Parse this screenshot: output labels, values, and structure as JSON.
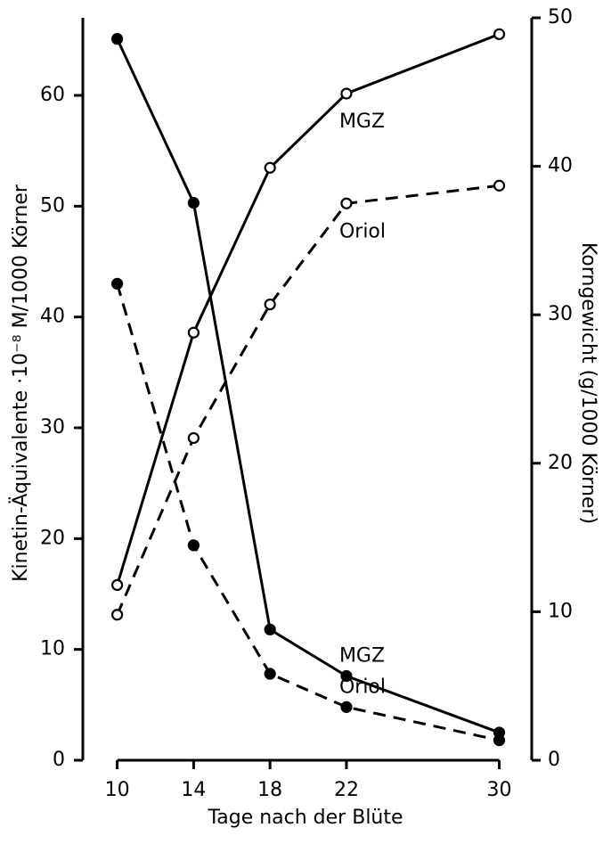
{
  "chart_data": {
    "type": "line",
    "xlabel": "Tage nach der Blüte",
    "ylabel": "Kinetin-Äquivalente ·10⁻⁸ M/1000 Körner",
    "y2label": "Korngewicht (g/1000 Körner)",
    "x": [
      10,
      14,
      18,
      22,
      30
    ],
    "xlim": [
      8.2,
      31.7
    ],
    "xticks": [
      10,
      14,
      18,
      22,
      30
    ],
    "ylim": [
      0,
      67
    ],
    "yticks": [
      0,
      10,
      20,
      30,
      40,
      50,
      60
    ],
    "y2lim": [
      0,
      50
    ],
    "y2ticks": [
      0,
      10,
      20,
      30,
      40,
      50
    ],
    "grid": false,
    "series": [
      {
        "name": "MGZ",
        "color": "#000000",
        "dashed": false,
        "marker": "filled",
        "axis": "y",
        "values": [
          65.1,
          50.3,
          11.8,
          7.6,
          2.5
        ]
      },
      {
        "name": "Oriol",
        "color": "#000000",
        "dashed": true,
        "marker": "filled",
        "axis": "y",
        "values": [
          43.0,
          19.4,
          7.8,
          4.8,
          1.8
        ]
      },
      {
        "name": "MGZ",
        "color": "#000000",
        "dashed": false,
        "marker": "open",
        "axis": "y2",
        "values": [
          11.8,
          28.8,
          39.9,
          44.9,
          48.9
        ]
      },
      {
        "name": "Oriol",
        "color": "#000000",
        "dashed": true,
        "marker": "open",
        "axis": "y2",
        "values": [
          9.8,
          21.7,
          30.7,
          37.5,
          38.7
        ]
      }
    ]
  }
}
